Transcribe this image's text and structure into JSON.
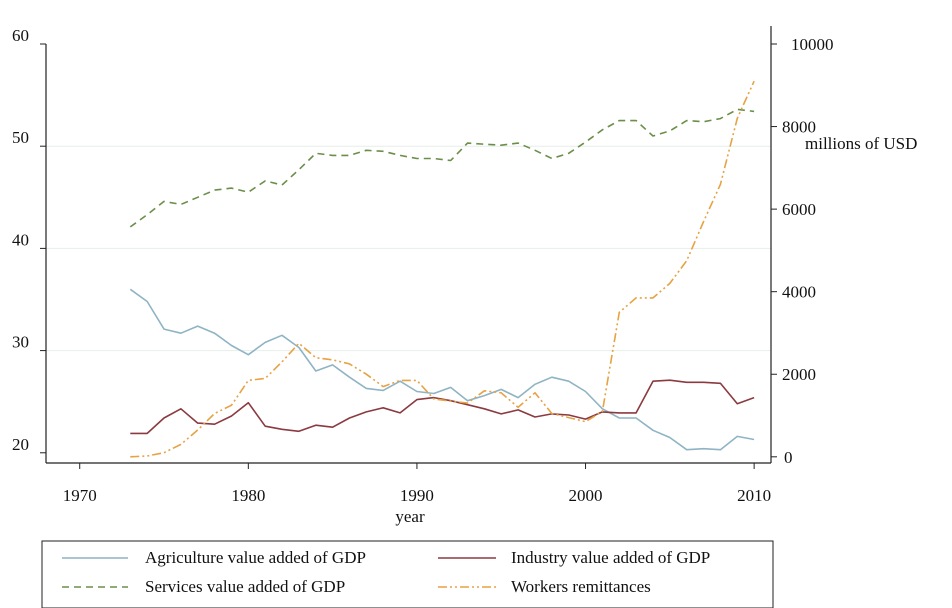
{
  "chart_data": {
    "type": "line",
    "xlabel": "year",
    "ylabel": "",
    "y2label": "millions of USD",
    "xlim": [
      1968,
      2011
    ],
    "ylim": [
      19,
      60
    ],
    "y2lim": [
      -150,
      10000
    ],
    "x_ticks": [
      1970,
      1980,
      1990,
      2000,
      2010
    ],
    "y_ticks": [
      20,
      30,
      40,
      50,
      60
    ],
    "y2_ticks": [
      0,
      2000,
      4000,
      6000,
      8000,
      10000
    ],
    "grid": "horizontal",
    "legend_position": "bottom",
    "x": [
      1973,
      1974,
      1975,
      1976,
      1977,
      1978,
      1979,
      1980,
      1981,
      1982,
      1983,
      1984,
      1985,
      1986,
      1987,
      1988,
      1989,
      1990,
      1991,
      1992,
      1993,
      1994,
      1995,
      1996,
      1997,
      1998,
      1999,
      2000,
      2001,
      2002,
      2003,
      2004,
      2005,
      2006,
      2007,
      2008,
      2009,
      2010
    ],
    "series": [
      {
        "name": "Agriculture value added of GDP",
        "axis": "left",
        "color": "#8fb4c4",
        "dash": "",
        "values": [
          36.0,
          34.8,
          32.1,
          31.7,
          32.4,
          31.7,
          30.5,
          29.6,
          30.8,
          31.5,
          30.3,
          28.0,
          28.6,
          27.4,
          26.3,
          26.1,
          27.0,
          26.0,
          25.8,
          26.4,
          25.1,
          25.6,
          26.2,
          25.4,
          26.7,
          27.4,
          27.0,
          26.0,
          24.3,
          23.4,
          23.4,
          22.2,
          21.5,
          20.3,
          20.4,
          20.3,
          21.6,
          21.3
        ]
      },
      {
        "name": "Industry value added of GDP",
        "axis": "left",
        "color": "#8b3a40",
        "dash": "",
        "values": [
          21.9,
          21.9,
          23.4,
          24.3,
          22.9,
          22.8,
          23.6,
          24.9,
          22.6,
          22.3,
          22.1,
          22.7,
          22.5,
          23.4,
          24.0,
          24.4,
          23.9,
          25.2,
          25.4,
          25.1,
          24.7,
          24.3,
          23.8,
          24.2,
          23.5,
          23.8,
          23.7,
          23.3,
          24.0,
          23.9,
          23.9,
          27.0,
          27.1,
          26.9,
          26.9,
          26.8,
          24.8,
          25.4
        ]
      },
      {
        "name": "Services value added of GDP",
        "axis": "left",
        "color": "#6b8f4a",
        "dash": "7,5",
        "values": [
          42.1,
          43.3,
          44.6,
          44.3,
          45.0,
          45.7,
          45.9,
          45.5,
          46.6,
          46.2,
          47.7,
          49.3,
          49.1,
          49.1,
          49.6,
          49.5,
          49.1,
          48.8,
          48.8,
          48.6,
          50.3,
          50.2,
          50.1,
          50.3,
          49.6,
          48.8,
          49.3,
          50.4,
          51.6,
          52.5,
          52.5,
          51.0,
          51.5,
          52.5,
          52.4,
          52.7,
          53.6,
          53.4
        ]
      },
      {
        "name": "Workers remittances",
        "axis": "right",
        "color": "#e7a243",
        "dash": "9,3,2,3,2,3",
        "values": [
          0,
          20,
          100,
          300,
          650,
          1050,
          1250,
          1850,
          1900,
          2300,
          2750,
          2400,
          2350,
          2250,
          2000,
          1700,
          1850,
          1850,
          1400,
          1350,
          1300,
          1600,
          1550,
          1200,
          1550,
          1050,
          950,
          850,
          1100,
          3500,
          3850,
          3850,
          4200,
          4750,
          5700,
          6600,
          8200,
          9100
        ]
      }
    ]
  }
}
